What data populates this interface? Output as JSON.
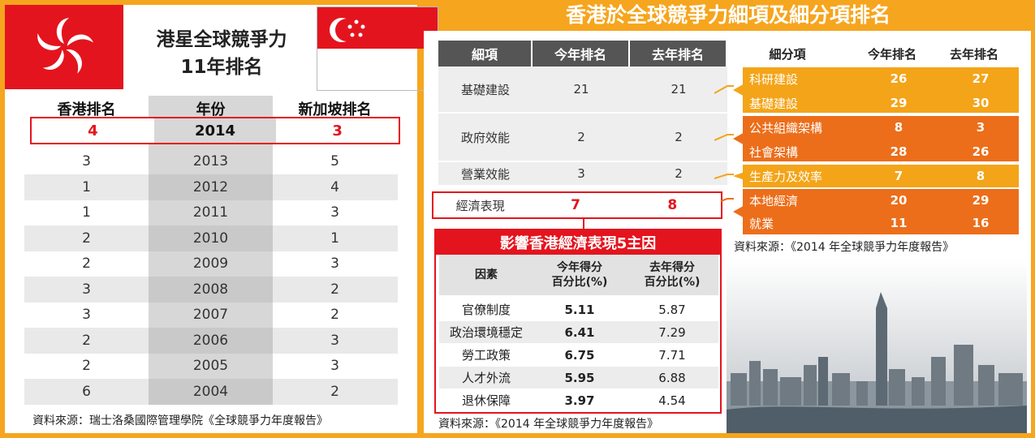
{
  "left": {
    "title_line1": "港星全球競爭力",
    "title_line2": "11年排名",
    "headers": [
      "香港排名",
      "年份",
      "新加坡排名"
    ],
    "highlight": {
      "hk": "4",
      "year": "2014",
      "sg": "3"
    },
    "rows": [
      {
        "hk": "3",
        "year": "2013",
        "sg": "5"
      },
      {
        "hk": "1",
        "year": "2012",
        "sg": "4"
      },
      {
        "hk": "1",
        "year": "2011",
        "sg": "3"
      },
      {
        "hk": "2",
        "year": "2010",
        "sg": "1"
      },
      {
        "hk": "2",
        "year": "2009",
        "sg": "3"
      },
      {
        "hk": "3",
        "year": "2008",
        "sg": "2"
      },
      {
        "hk": "3",
        "year": "2007",
        "sg": "2"
      },
      {
        "hk": "2",
        "year": "2006",
        "sg": "3"
      },
      {
        "hk": "2",
        "year": "2005",
        "sg": "3"
      },
      {
        "hk": "6",
        "year": "2004",
        "sg": "2"
      }
    ],
    "source": "資料來源：瑞士洛桑國際管理學院《全球競爭力年度報告》"
  },
  "right": {
    "title": "香港於全球競爭力細項及細分項排名",
    "main_headers": [
      "細項",
      "今年排名",
      "去年排名"
    ],
    "main_rows": [
      {
        "name": "基礎建設",
        "now": "21",
        "last": "21"
      },
      {
        "name": "政府效能",
        "now": "2",
        "last": "2"
      },
      {
        "name": "營業效能",
        "now": "3",
        "last": "2"
      }
    ],
    "main_highlight": {
      "name": "經濟表現",
      "now": "7",
      "last": "8"
    },
    "sub_headers": [
      "細分項",
      "今年排名",
      "去年排名"
    ],
    "sub_rows": [
      {
        "name": "科研建設",
        "now": "26",
        "last": "27"
      },
      {
        "name": "基礎建設",
        "now": "29",
        "last": "30"
      },
      {
        "name": "公共組織架構",
        "now": "8",
        "last": "3"
      },
      {
        "name": "社會架構",
        "now": "28",
        "last": "26"
      },
      {
        "name": "生產力及效率",
        "now": "7",
        "last": "8"
      },
      {
        "name": "本地經濟",
        "now": "20",
        "last": "29"
      },
      {
        "name": "就業",
        "now": "11",
        "last": "16"
      }
    ],
    "sub_source": "資料來源：《2014 年全球競爭力年度報告》",
    "factors_title": "影響香港經濟表現5主因",
    "factor_headers": {
      "h1": "因素",
      "h2_line1": "今年得分",
      "h2_line2": "百分比(%)",
      "h3_line1": "去年得分",
      "h3_line2": "百分比(%)"
    },
    "factors": [
      {
        "name": "官僚制度",
        "now": "5.11",
        "last": "5.87"
      },
      {
        "name": "政治環境穩定",
        "now": "6.41",
        "last": "7.29"
      },
      {
        "name": "勞工政策",
        "now": "6.75",
        "last": "7.71"
      },
      {
        "name": "人才外流",
        "now": "5.95",
        "last": "6.88"
      },
      {
        "name": "退休保障",
        "now": "3.97",
        "last": "4.54"
      }
    ],
    "factors_source": "資料來源：《2014 年全球競爭力年度報告》"
  },
  "colors": {
    "orange": "#f6a51e",
    "dark_orange": "#ec6e1a",
    "red": "#e4141e",
    "header_gray": "#555555"
  }
}
